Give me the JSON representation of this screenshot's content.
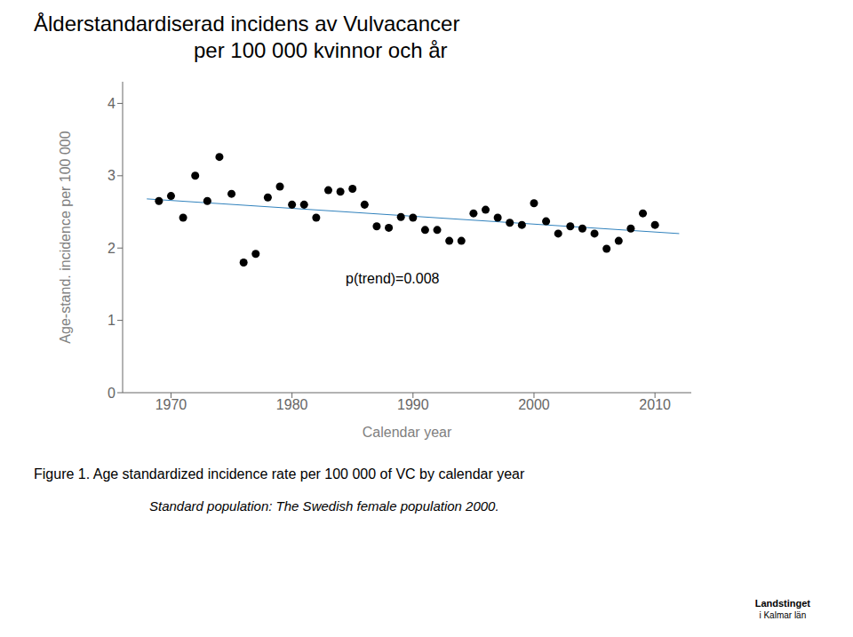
{
  "chart_data": {
    "type": "scatter",
    "title": "Ålderstandardiserad incidens av Vulvacancer",
    "subtitle": "per 100 000 kvinnor och år",
    "xlabel": "Calendar year",
    "ylabel": "Age-stand. incidence per 100 000",
    "x": [
      1969,
      1970,
      1971,
      1972,
      1973,
      1974,
      1975,
      1976,
      1977,
      1978,
      1979,
      1980,
      1981,
      1982,
      1983,
      1984,
      1985,
      1986,
      1987,
      1988,
      1989,
      1990,
      1991,
      1992,
      1993,
      1994,
      1995,
      1996,
      1997,
      1998,
      1999,
      2000,
      2001,
      2002,
      2003,
      2004,
      2005,
      2006,
      2007,
      2008,
      2009,
      2010
    ],
    "values": [
      2.65,
      2.72,
      2.42,
      3.0,
      2.65,
      3.26,
      2.75,
      1.8,
      1.92,
      2.7,
      2.85,
      2.6,
      2.6,
      2.42,
      2.8,
      2.78,
      2.82,
      2.6,
      2.3,
      2.28,
      2.43,
      2.42,
      2.25,
      2.25,
      2.1,
      2.1,
      2.48,
      2.53,
      2.42,
      2.35,
      2.32,
      2.62,
      2.37,
      2.2,
      2.3,
      2.27,
      2.2,
      1.99,
      2.1,
      2.27,
      2.48,
      2.32
    ],
    "trend": {
      "x": [
        1968,
        2012
      ],
      "values": [
        2.68,
        2.2
      ]
    },
    "annotations": [
      {
        "text": "p(trend)=0.008",
        "x": 1984,
        "y": 1.58
      }
    ],
    "captions": [
      "Figure 1. Age standardized incidence rate per 100 000 of VC by calendar year",
      "Standard population: The Swedish female population 2000."
    ],
    "logo": [
      "Landstinget",
      "i Kalmar län"
    ],
    "xlim": [
      1966,
      2013
    ],
    "ylim": [
      0,
      4.3
    ],
    "xticks": [
      1970,
      1980,
      1990,
      2000,
      2010
    ],
    "yticks": [
      0,
      1,
      2,
      3,
      4
    ],
    "grid": false
  }
}
